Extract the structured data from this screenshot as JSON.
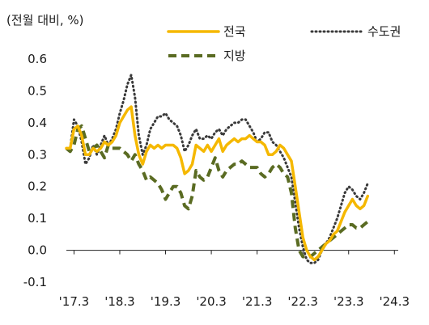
{
  "chart_data": {
    "type": "line",
    "unit_label": "(전월 대비, %)",
    "x_tick_labels": [
      "'17.3",
      "'18.3",
      "'19.3",
      "'20.3",
      "'21.3",
      "'22.3",
      "'23.3",
      "'24.3"
    ],
    "x_range": [
      "2017-01",
      "2024-04"
    ],
    "y_tick_labels": [
      "0.6",
      "0.5",
      "0.4",
      "0.3",
      "0.2",
      "0.1",
      "0.0",
      "-0.1"
    ],
    "ylim": [
      -0.1,
      0.6
    ],
    "y_ticks": [
      0.6,
      0.5,
      0.4,
      0.3,
      0.2,
      0.1,
      0.0,
      -0.1
    ],
    "grid": false,
    "legend": {
      "placement": "top",
      "entries": [
        "전국",
        "수도권",
        "지방"
      ]
    },
    "series": [
      {
        "name": "전국",
        "color": "#F5B800",
        "style": "solid",
        "points": [
          [
            "2017-01",
            0.32
          ],
          [
            "2017-02",
            0.32
          ],
          [
            "2017-03",
            0.38
          ],
          [
            "2017-04",
            0.39
          ],
          [
            "2017-05",
            0.36
          ],
          [
            "2017-06",
            0.3
          ],
          [
            "2017-07",
            0.3
          ],
          [
            "2017-08",
            0.32
          ],
          [
            "2017-09",
            0.31
          ],
          [
            "2017-10",
            0.32
          ],
          [
            "2017-11",
            0.34
          ],
          [
            "2017-12",
            0.33
          ],
          [
            "2018-01",
            0.34
          ],
          [
            "2018-02",
            0.36
          ],
          [
            "2018-03",
            0.4
          ],
          [
            "2018-04",
            0.42
          ],
          [
            "2018-05",
            0.44
          ],
          [
            "2018-06",
            0.45
          ],
          [
            "2018-07",
            0.36
          ],
          [
            "2018-08",
            0.3
          ],
          [
            "2018-09",
            0.27
          ],
          [
            "2018-10",
            0.31
          ],
          [
            "2018-11",
            0.33
          ],
          [
            "2018-12",
            0.32
          ],
          [
            "2019-01",
            0.33
          ],
          [
            "2019-02",
            0.32
          ],
          [
            "2019-03",
            0.33
          ],
          [
            "2019-04",
            0.33
          ],
          [
            "2019-05",
            0.33
          ],
          [
            "2019-06",
            0.32
          ],
          [
            "2019-07",
            0.29
          ],
          [
            "2019-08",
            0.24
          ],
          [
            "2019-09",
            0.25
          ],
          [
            "2019-10",
            0.27
          ],
          [
            "2019-11",
            0.33
          ],
          [
            "2019-12",
            0.32
          ],
          [
            "2020-01",
            0.31
          ],
          [
            "2020-02",
            0.33
          ],
          [
            "2020-03",
            0.31
          ],
          [
            "2020-04",
            0.33
          ],
          [
            "2020-05",
            0.35
          ],
          [
            "2020-06",
            0.31
          ],
          [
            "2020-07",
            0.33
          ],
          [
            "2020-08",
            0.34
          ],
          [
            "2020-09",
            0.35
          ],
          [
            "2020-10",
            0.34
          ],
          [
            "2020-11",
            0.35
          ],
          [
            "2020-12",
            0.35
          ],
          [
            "2021-01",
            0.36
          ],
          [
            "2021-02",
            0.35
          ],
          [
            "2021-03",
            0.34
          ],
          [
            "2021-04",
            0.34
          ],
          [
            "2021-05",
            0.33
          ],
          [
            "2021-06",
            0.3
          ],
          [
            "2021-07",
            0.3
          ],
          [
            "2021-08",
            0.31
          ],
          [
            "2021-09",
            0.33
          ],
          [
            "2021-10",
            0.32
          ],
          [
            "2021-11",
            0.3
          ],
          [
            "2021-12",
            0.28
          ],
          [
            "2022-01",
            0.2
          ],
          [
            "2022-02",
            0.12
          ],
          [
            "2022-03",
            0.04
          ],
          [
            "2022-04",
            0.0
          ],
          [
            "2022-05",
            -0.02
          ],
          [
            "2022-06",
            -0.03
          ],
          [
            "2022-07",
            -0.02
          ],
          [
            "2022-08",
            0.0
          ],
          [
            "2022-09",
            0.02
          ],
          [
            "2022-10",
            0.03
          ],
          [
            "2022-11",
            0.05
          ],
          [
            "2022-12",
            0.06
          ],
          [
            "2023-01",
            0.09
          ],
          [
            "2023-02",
            0.12
          ],
          [
            "2023-03",
            0.14
          ],
          [
            "2023-04",
            0.16
          ],
          [
            "2023-05",
            0.14
          ],
          [
            "2023-06",
            0.13
          ],
          [
            "2023-07",
            0.14
          ],
          [
            "2023-08",
            0.17
          ]
        ]
      },
      {
        "name": "수도권",
        "color": "#3a3a3a",
        "style": "dotted",
        "points": [
          [
            "2017-01",
            0.32
          ],
          [
            "2017-02",
            0.32
          ],
          [
            "2017-03",
            0.41
          ],
          [
            "2017-04",
            0.39
          ],
          [
            "2017-05",
            0.34
          ],
          [
            "2017-06",
            0.27
          ],
          [
            "2017-07",
            0.29
          ],
          [
            "2017-08",
            0.33
          ],
          [
            "2017-09",
            0.3
          ],
          [
            "2017-10",
            0.33
          ],
          [
            "2017-11",
            0.36
          ],
          [
            "2017-12",
            0.33
          ],
          [
            "2018-01",
            0.35
          ],
          [
            "2018-02",
            0.38
          ],
          [
            "2018-03",
            0.43
          ],
          [
            "2018-04",
            0.47
          ],
          [
            "2018-05",
            0.52
          ],
          [
            "2018-06",
            0.55
          ],
          [
            "2018-07",
            0.48
          ],
          [
            "2018-08",
            0.36
          ],
          [
            "2018-09",
            0.3
          ],
          [
            "2018-10",
            0.33
          ],
          [
            "2018-11",
            0.38
          ],
          [
            "2018-12",
            0.4
          ],
          [
            "2019-01",
            0.42
          ],
          [
            "2019-02",
            0.42
          ],
          [
            "2019-03",
            0.43
          ],
          [
            "2019-04",
            0.41
          ],
          [
            "2019-05",
            0.4
          ],
          [
            "2019-06",
            0.39
          ],
          [
            "2019-07",
            0.36
          ],
          [
            "2019-08",
            0.31
          ],
          [
            "2019-09",
            0.33
          ],
          [
            "2019-10",
            0.36
          ],
          [
            "2019-11",
            0.38
          ],
          [
            "2019-12",
            0.35
          ],
          [
            "2020-01",
            0.35
          ],
          [
            "2020-02",
            0.36
          ],
          [
            "2020-03",
            0.35
          ],
          [
            "2020-04",
            0.37
          ],
          [
            "2020-05",
            0.38
          ],
          [
            "2020-06",
            0.36
          ],
          [
            "2020-07",
            0.38
          ],
          [
            "2020-08",
            0.39
          ],
          [
            "2020-09",
            0.4
          ],
          [
            "2020-10",
            0.4
          ],
          [
            "2020-11",
            0.41
          ],
          [
            "2020-12",
            0.41
          ],
          [
            "2021-01",
            0.39
          ],
          [
            "2021-02",
            0.37
          ],
          [
            "2021-03",
            0.34
          ],
          [
            "2021-04",
            0.35
          ],
          [
            "2021-05",
            0.37
          ],
          [
            "2021-06",
            0.37
          ],
          [
            "2021-07",
            0.34
          ],
          [
            "2021-08",
            0.33
          ],
          [
            "2021-09",
            0.31
          ],
          [
            "2021-10",
            0.29
          ],
          [
            "2021-11",
            0.26
          ],
          [
            "2021-12",
            0.23
          ],
          [
            "2022-01",
            0.15
          ],
          [
            "2022-02",
            0.07
          ],
          [
            "2022-03",
            0.01
          ],
          [
            "2022-04",
            -0.03
          ],
          [
            "2022-05",
            -0.04
          ],
          [
            "2022-06",
            -0.04
          ],
          [
            "2022-07",
            -0.03
          ],
          [
            "2022-08",
            0.0
          ],
          [
            "2022-09",
            0.02
          ],
          [
            "2022-10",
            0.04
          ],
          [
            "2022-11",
            0.07
          ],
          [
            "2022-12",
            0.1
          ],
          [
            "2023-01",
            0.14
          ],
          [
            "2023-02",
            0.18
          ],
          [
            "2023-03",
            0.2
          ],
          [
            "2023-04",
            0.19
          ],
          [
            "2023-05",
            0.17
          ],
          [
            "2023-06",
            0.16
          ],
          [
            "2023-07",
            0.18
          ],
          [
            "2023-08",
            0.21
          ]
        ]
      },
      {
        "name": "지방",
        "color": "#5A6B22",
        "style": "dashed",
        "points": [
          [
            "2017-01",
            0.32
          ],
          [
            "2017-02",
            0.31
          ],
          [
            "2017-03",
            0.33
          ],
          [
            "2017-04",
            0.38
          ],
          [
            "2017-05",
            0.39
          ],
          [
            "2017-06",
            0.35
          ],
          [
            "2017-07",
            0.31
          ],
          [
            "2017-08",
            0.32
          ],
          [
            "2017-09",
            0.33
          ],
          [
            "2017-10",
            0.31
          ],
          [
            "2017-11",
            0.29
          ],
          [
            "2017-12",
            0.33
          ],
          [
            "2018-01",
            0.32
          ],
          [
            "2018-02",
            0.32
          ],
          [
            "2018-03",
            0.32
          ],
          [
            "2018-04",
            0.31
          ],
          [
            "2018-05",
            0.3
          ],
          [
            "2018-06",
            0.28
          ],
          [
            "2018-07",
            0.3
          ],
          [
            "2018-08",
            0.27
          ],
          [
            "2018-09",
            0.25
          ],
          [
            "2018-10",
            0.22
          ],
          [
            "2018-11",
            0.23
          ],
          [
            "2018-12",
            0.22
          ],
          [
            "2019-01",
            0.21
          ],
          [
            "2019-02",
            0.19
          ],
          [
            "2019-03",
            0.16
          ],
          [
            "2019-04",
            0.18
          ],
          [
            "2019-05",
            0.2
          ],
          [
            "2019-06",
            0.2
          ],
          [
            "2019-07",
            0.18
          ],
          [
            "2019-08",
            0.14
          ],
          [
            "2019-09",
            0.13
          ],
          [
            "2019-10",
            0.17
          ],
          [
            "2019-11",
            0.25
          ],
          [
            "2019-12",
            0.23
          ],
          [
            "2020-01",
            0.22
          ],
          [
            "2020-02",
            0.23
          ],
          [
            "2020-03",
            0.26
          ],
          [
            "2020-04",
            0.29
          ],
          [
            "2020-05",
            0.25
          ],
          [
            "2020-06",
            0.23
          ],
          [
            "2020-07",
            0.25
          ],
          [
            "2020-08",
            0.26
          ],
          [
            "2020-09",
            0.27
          ],
          [
            "2020-10",
            0.27
          ],
          [
            "2020-11",
            0.28
          ],
          [
            "2020-12",
            0.27
          ],
          [
            "2021-01",
            0.26
          ],
          [
            "2021-02",
            0.26
          ],
          [
            "2021-03",
            0.26
          ],
          [
            "2021-04",
            0.24
          ],
          [
            "2021-05",
            0.23
          ],
          [
            "2021-06",
            0.24
          ],
          [
            "2021-07",
            0.26
          ],
          [
            "2021-08",
            0.27
          ],
          [
            "2021-09",
            0.26
          ],
          [
            "2021-10",
            0.24
          ],
          [
            "2021-11",
            0.23
          ],
          [
            "2021-12",
            0.18
          ],
          [
            "2022-01",
            0.07
          ],
          [
            "2022-02",
            0.0
          ],
          [
            "2022-03",
            -0.02
          ],
          [
            "2022-04",
            -0.02
          ],
          [
            "2022-05",
            -0.02
          ],
          [
            "2022-06",
            -0.01
          ],
          [
            "2022-07",
            0.0
          ],
          [
            "2022-08",
            0.01
          ],
          [
            "2022-09",
            0.02
          ],
          [
            "2022-10",
            0.03
          ],
          [
            "2022-11",
            0.04
          ],
          [
            "2022-12",
            0.05
          ],
          [
            "2023-01",
            0.06
          ],
          [
            "2023-02",
            0.07
          ],
          [
            "2023-03",
            0.08
          ],
          [
            "2023-04",
            0.08
          ],
          [
            "2023-05",
            0.07
          ],
          [
            "2023-06",
            0.07
          ],
          [
            "2023-07",
            0.08
          ],
          [
            "2023-08",
            0.09
          ]
        ]
      }
    ]
  }
}
